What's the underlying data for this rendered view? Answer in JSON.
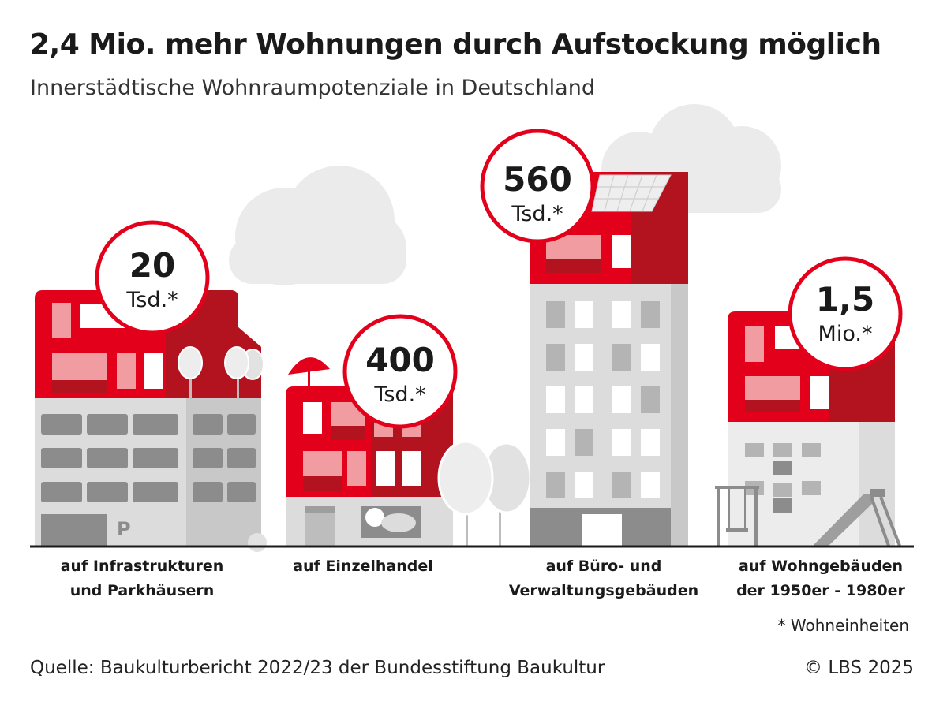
{
  "header": {
    "title": "2,4 Mio. mehr Wohnungen durch Aufstockung möglich",
    "subtitle": "Innerstädtische Wohnraumpotenziale in Deutschland"
  },
  "chart_data": {
    "type": "pictogram",
    "title": "2,4 Mio. mehr Wohnungen durch Aufstockung möglich",
    "subtitle": "Innerstädtische Wohnraumpotenziale in Deutschland",
    "unit": "Wohneinheiten",
    "categories": [
      "auf Infrastrukturen und Parkhäusern",
      "auf Einzelhandel",
      "auf Büro- und Verwaltungsgebäuden",
      "auf Wohngebäuden der 1950er - 1980er"
    ],
    "values": [
      20000,
      400000,
      560000,
      1500000
    ],
    "badges": [
      {
        "number": "20",
        "unit": "Tsd.*"
      },
      {
        "number": "400",
        "unit": "Tsd.*"
      },
      {
        "number": "560",
        "unit": "Tsd.*"
      },
      {
        "number": "1,5",
        "unit": "Mio.*"
      }
    ],
    "labels": [
      {
        "line1": "auf Infrastrukturen",
        "line2": "und Parkhäusern"
      },
      {
        "line1": "auf Einzelhandel",
        "line2": ""
      },
      {
        "line1": "auf Büro- und",
        "line2": "Verwaltungsgebäuden"
      },
      {
        "line1": "auf Wohngebäuden",
        "line2": "der 1950er - 1980er"
      }
    ],
    "colors": {
      "accent": "#e3001b",
      "accent_dark": "#b3121f",
      "accent_light": "#f19ca0",
      "building_gray": "#dcdcdc",
      "window_gray": "#8c8c8c",
      "cloud": "#ebebeb"
    }
  },
  "footnote": "* Wohneinheiten",
  "source": "Quelle: Baukulturbericht 2022/23 der Bundesstiftung Baukultur",
  "copyright": "© LBS 2025"
}
